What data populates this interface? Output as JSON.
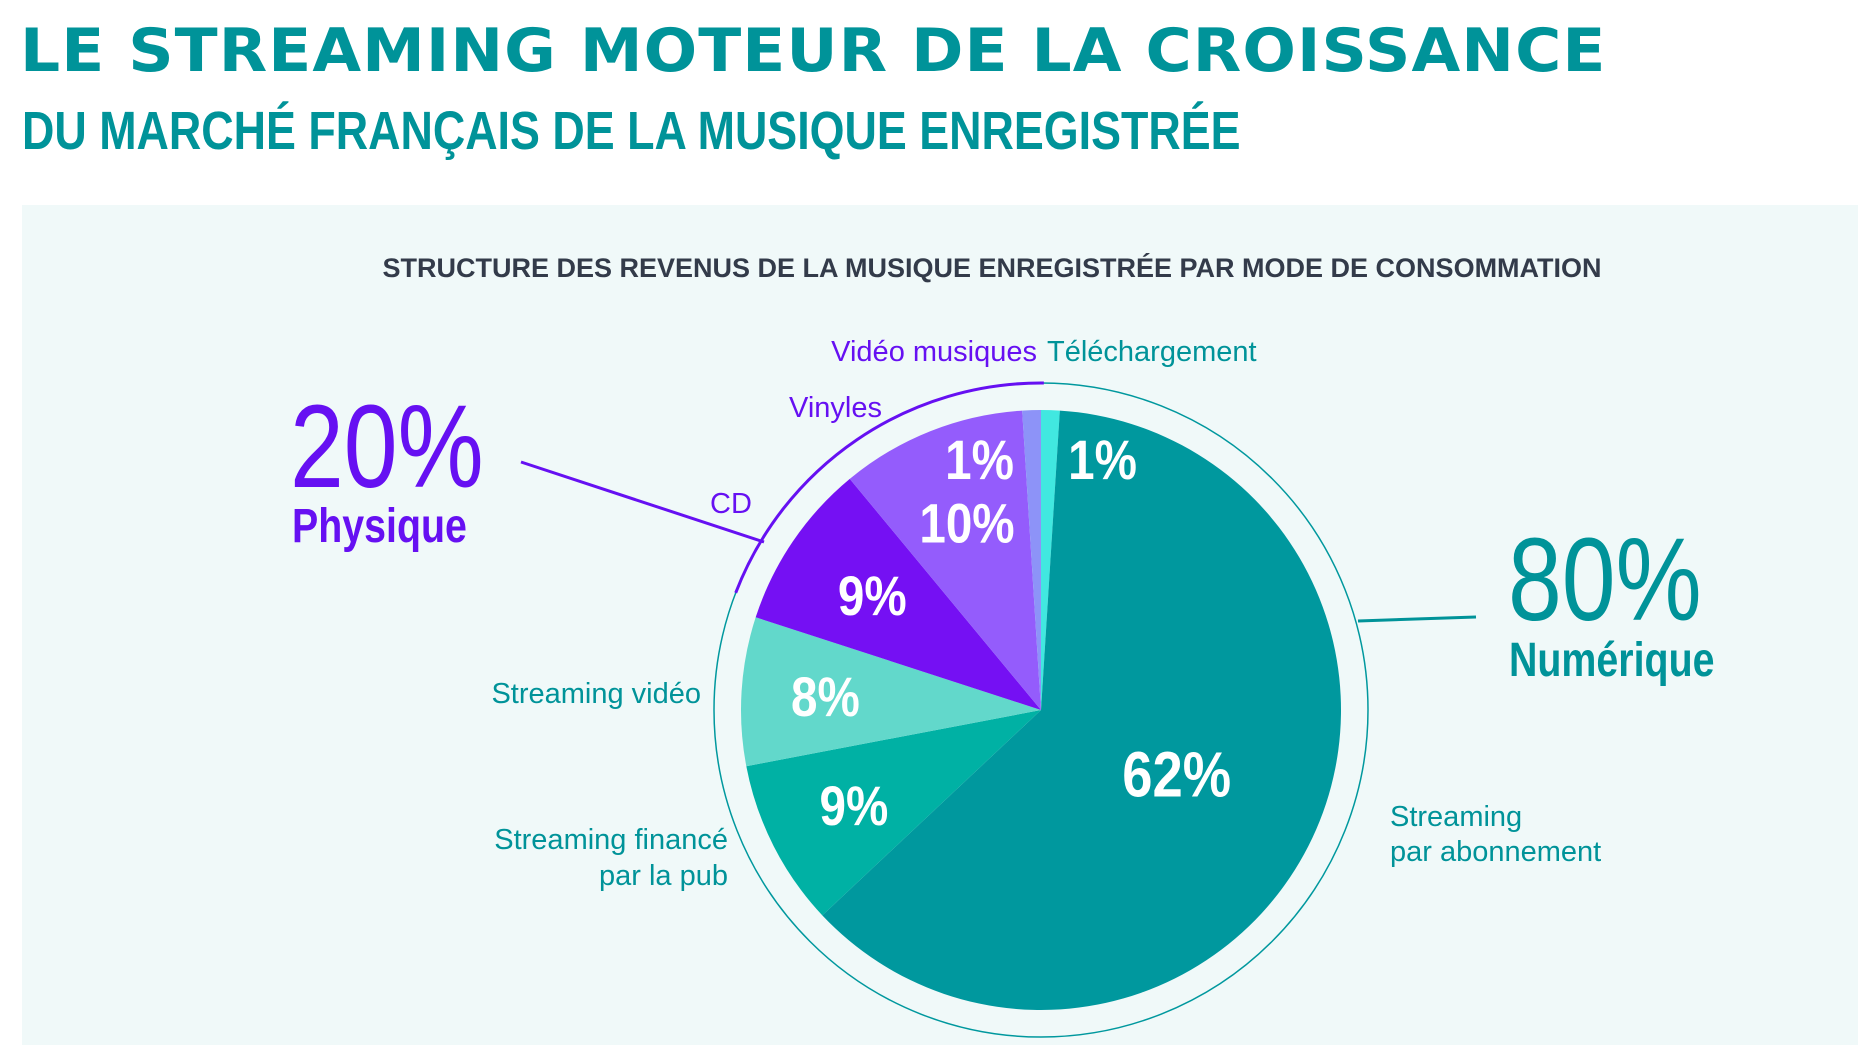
{
  "header": {
    "title": "LE STREAMING MOTEUR DE LA CROISSANCE",
    "subtitle": "DU MARCHÉ FRANÇAIS DE LA MUSIQUE ENREGISTRÉE"
  },
  "colors": {
    "brand_teal": "#009399",
    "physical_purple": "#6610f2",
    "panel_bg": "#f0f9f9"
  },
  "chart_data": {
    "type": "pie",
    "title": "STRUCTURE DES REVENUS DE LA MUSIQUE ENREGISTRÉE PAR MODE DE CONSOMMATION",
    "slices": [
      {
        "name": "Téléchargement",
        "value": 1,
        "value_label": "1%",
        "color": "#41e8e0",
        "group": "Numérique"
      },
      {
        "name": "Streaming par abonnement",
        "value": 62,
        "value_label": "62%",
        "color": "#00989e",
        "group": "Numérique"
      },
      {
        "name": "Streaming financé par la pub",
        "value": 9,
        "value_label": "9%",
        "color": "#00b1a4",
        "group": "Numérique"
      },
      {
        "name": "Streaming vidéo",
        "value": 8,
        "value_label": "8%",
        "color": "#62d8cb",
        "group": "Numérique"
      },
      {
        "name": "CD",
        "value": 9,
        "value_label": "9%",
        "color": "#7510f3",
        "group": "Physique"
      },
      {
        "name": "Vinyles",
        "value": 10,
        "value_label": "10%",
        "color": "#945cfc",
        "group": "Physique"
      },
      {
        "name": "Vidéo musiques",
        "value": 1,
        "value_label": "1%",
        "color": "#8d93f8",
        "group": "Physique"
      }
    ],
    "groups": [
      {
        "name": "Physique",
        "value": 20,
        "value_label": "20%",
        "color": "#6610f2"
      },
      {
        "name": "Numérique",
        "value": 80,
        "value_label": "80%",
        "color": "#009399"
      }
    ],
    "category_labels": {
      "video_musiques": "Vidéo musiques",
      "telechargement": "Téléchargement",
      "vinyles": "Vinyles",
      "cd": "CD",
      "streaming_video": "Streaming vidéo",
      "streaming_pub_line1": "Streaming financé",
      "streaming_pub_line2": "par la pub",
      "streaming_abo_line1": "Streaming",
      "streaming_abo_line2": "par abonnement"
    }
  }
}
